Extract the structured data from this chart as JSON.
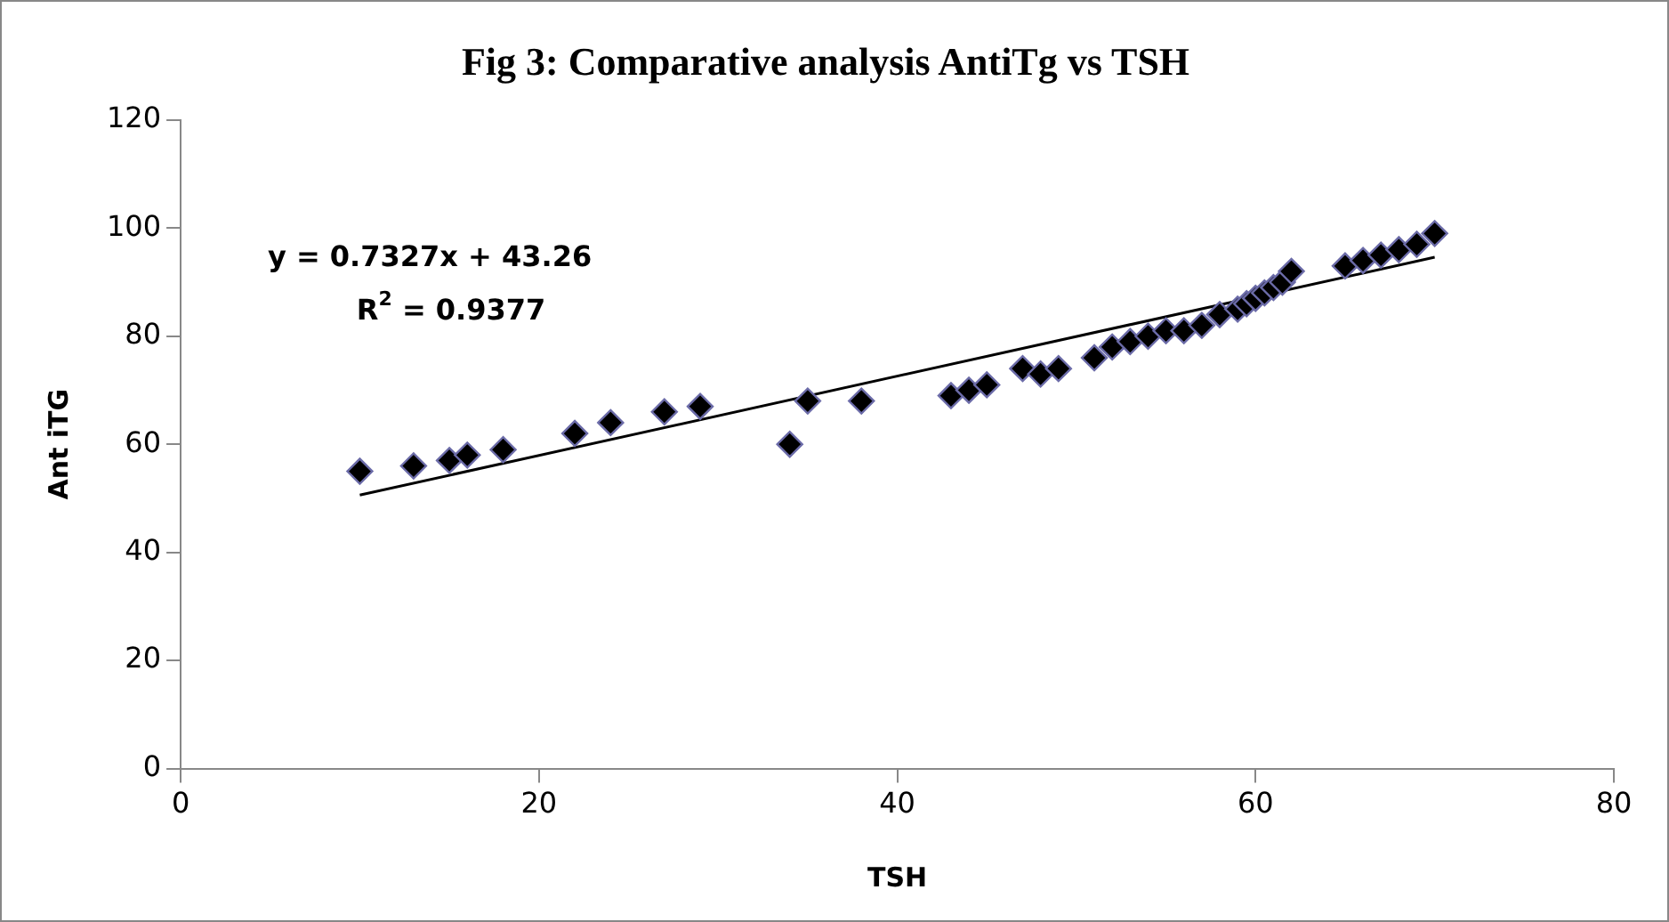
{
  "chart_data": {
    "type": "scatter",
    "title": "Fig 3: Comparative analysis AntiTg vs TSH",
    "xlabel": "TSH",
    "ylabel": "Ant iTG",
    "annotations": [
      "y = 0.7327x + 43.26",
      "R$^{2}$ = 0.9377"
    ],
    "series": [
      {
        "type": "scatter",
        "color": "#000000",
        "marker": "diamond",
        "x": [
          10,
          13,
          15,
          16,
          18,
          22,
          24,
          27,
          29,
          34,
          35,
          38,
          43,
          44,
          45,
          47,
          48,
          49,
          51,
          52,
          53,
          54,
          55,
          56,
          57,
          58,
          59,
          59.5,
          60,
          60.5,
          61,
          61.5,
          62,
          65,
          66,
          67,
          68,
          69,
          70
        ],
        "values": [
          55,
          56,
          57,
          58,
          59,
          62,
          64,
          66,
          67,
          60,
          68,
          68,
          69,
          70,
          71,
          74,
          73,
          74,
          76,
          78,
          79,
          80,
          81,
          81,
          82,
          84,
          85,
          86,
          87,
          88,
          89,
          90,
          92,
          93,
          94,
          95,
          96,
          97,
          99
        ]
      },
      {
        "type": "line",
        "color": "#000000",
        "marker": "none",
        "x": [
          10,
          70
        ],
        "values": [
          50.6,
          94.6
        ]
      }
    ],
    "xlim": [
      0,
      80
    ],
    "xticks": [
      0,
      20,
      40,
      60,
      80
    ],
    "ylim": [
      0,
      120
    ],
    "yticks": [
      0,
      20,
      40,
      60,
      80,
      100,
      120
    ],
    "grid": false,
    "legend": false
  }
}
